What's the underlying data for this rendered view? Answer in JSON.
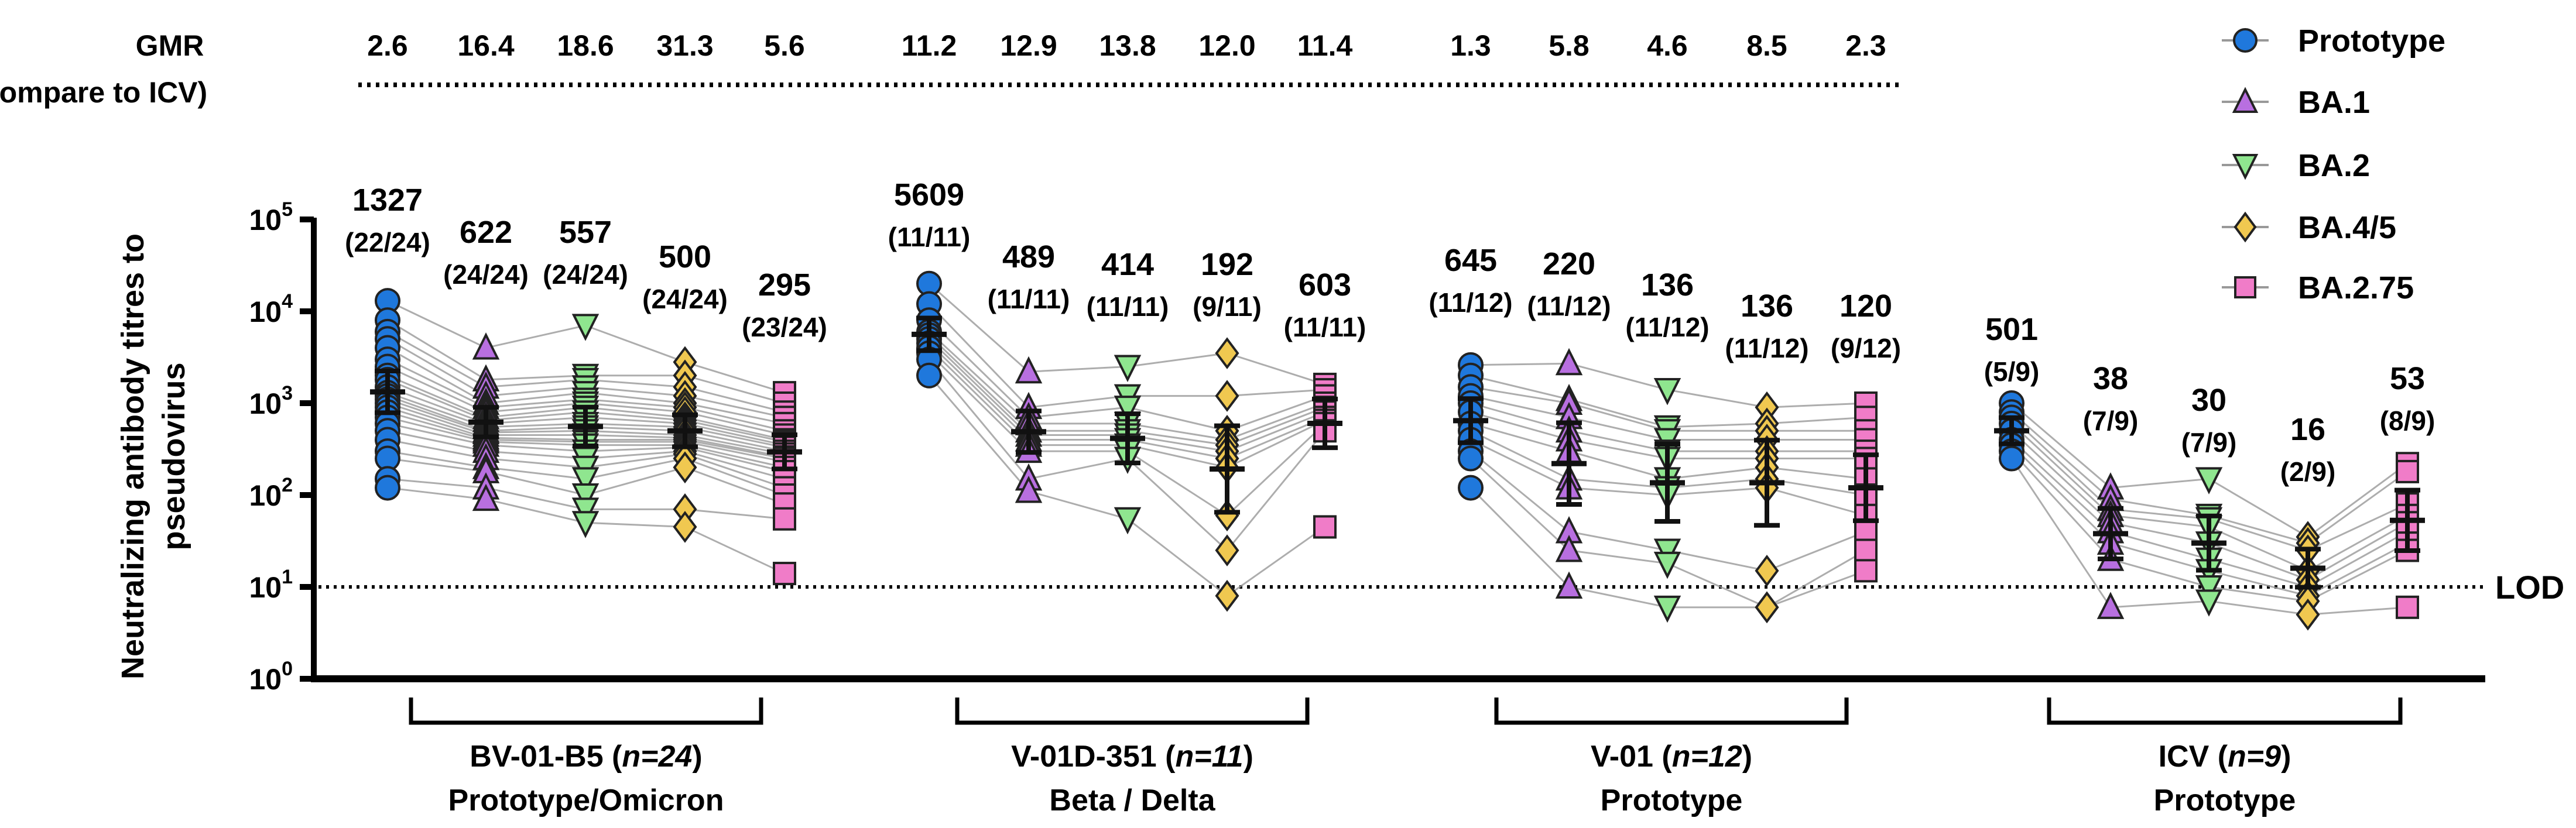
{
  "chart_data": {
    "type": "scatter",
    "title": "",
    "ylabel_lines": [
      "Neutralizing antibody titres to",
      "pseudovirus"
    ],
    "yscale": "log",
    "ylim": [
      1,
      100000
    ],
    "yticks": [
      {
        "base": "10",
        "exp": "0",
        "value": 1
      },
      {
        "base": "10",
        "exp": "1",
        "value": 10
      },
      {
        "base": "10",
        "exp": "2",
        "value": 100
      },
      {
        "base": "10",
        "exp": "3",
        "value": 1000
      },
      {
        "base": "10",
        "exp": "4",
        "value": 10000
      },
      {
        "base": "10",
        "exp": "5",
        "value": 100000
      }
    ],
    "lod": {
      "value": 10,
      "label": "LOD"
    },
    "gmr_header": {
      "label": "GMR",
      "sublabel": "(Compare to ICV)"
    },
    "legend_position": "top-right",
    "series": [
      {
        "name": "Prototype",
        "marker": "circle",
        "color": "#1f78dc"
      },
      {
        "name": "BA.1",
        "marker": "triangle-up",
        "color": "#b86fe0"
      },
      {
        "name": "BA.2",
        "marker": "triangle-down",
        "color": "#8fe68f"
      },
      {
        "name": "BA.4/5",
        "marker": "diamond",
        "color": "#f0c850"
      },
      {
        "name": "BA.2.75",
        "marker": "square",
        "color": "#f07cc8"
      }
    ],
    "groups": [
      {
        "label": "BV-01-B5 (",
        "n_label": "n=24",
        "label_end": ")",
        "sublabel": "Prototype/Omicron",
        "gmr": [
          "2.6",
          "16.4",
          "18.6",
          "31.3",
          "5.6"
        ],
        "gmt": [
          1327,
          622,
          557,
          500,
          295
        ],
        "gmt_labels": [
          "1327",
          "622",
          "557",
          "500",
          "295"
        ],
        "responders": [
          "(22/24)",
          "(24/24)",
          "(24/24)",
          "(24/24)",
          "(23/24)"
        ],
        "subjects": [
          [
            13000,
            4000,
            7000,
            2800,
            1300
          ],
          [
            8000,
            1800,
            2000,
            2000,
            1000
          ],
          [
            6000,
            1500,
            1800,
            1500,
            800
          ],
          [
            5000,
            1200,
            1500,
            1200,
            700
          ],
          [
            4000,
            1000,
            1300,
            1000,
            600
          ],
          [
            3000,
            900,
            1100,
            900,
            500
          ],
          [
            2500,
            800,
            1000,
            800,
            450
          ],
          [
            2000,
            700,
            900,
            700,
            400
          ],
          [
            1800,
            650,
            800,
            650,
            380
          ],
          [
            1500,
            600,
            700,
            600,
            350
          ],
          [
            1300,
            550,
            600,
            550,
            330
          ],
          [
            1200,
            500,
            550,
            500,
            300
          ],
          [
            1100,
            480,
            500,
            450,
            280
          ],
          [
            1000,
            450,
            450,
            420,
            260
          ],
          [
            900,
            420,
            400,
            400,
            250
          ],
          [
            800,
            400,
            380,
            380,
            230
          ],
          [
            700,
            380,
            350,
            350,
            200
          ],
          [
            600,
            350,
            300,
            330,
            180
          ],
          [
            500,
            300,
            250,
            300,
            150
          ],
          [
            400,
            250,
            200,
            280,
            120
          ],
          [
            300,
            200,
            150,
            250,
            100
          ],
          [
            250,
            180,
            100,
            200,
            80
          ],
          [
            150,
            120,
            70,
            70,
            55
          ],
          [
            120,
            90,
            50,
            45,
            14
          ]
        ]
      },
      {
        "label": "V-01D-351 (",
        "n_label": "n=11",
        "label_end": ")",
        "sublabel": "Beta / Delta",
        "gmr": [
          "11.2",
          "12.9",
          "13.8",
          "12.0",
          "11.4"
        ],
        "gmt": [
          5609,
          489,
          414,
          192,
          603
        ],
        "gmt_labels": [
          "5609",
          "489",
          "414",
          "192",
          "603"
        ],
        "responders": [
          "(11/11)",
          "(11/11)",
          "(11/11)",
          "(9/11)",
          "(11/11)"
        ],
        "subjects": [
          [
            20000,
            2200,
            2500,
            3500,
            1600
          ],
          [
            12000,
            900,
            1200,
            1200,
            1400
          ],
          [
            8000,
            700,
            900,
            500,
            1200
          ],
          [
            6000,
            600,
            600,
            400,
            1000
          ],
          [
            5500,
            500,
            500,
            350,
            900
          ],
          [
            5000,
            450,
            450,
            300,
            800
          ],
          [
            4500,
            400,
            400,
            250,
            700
          ],
          [
            4000,
            350,
            350,
            200,
            650
          ],
          [
            3500,
            300,
            300,
            60,
            600
          ],
          [
            3000,
            150,
            250,
            25,
            500
          ],
          [
            2000,
            110,
            55,
            8,
            45
          ]
        ]
      },
      {
        "label": "V-01 (",
        "n_label": "n=12",
        "label_end": ")",
        "sublabel": "Prototype",
        "gmr": [
          "1.3",
          "5.8",
          "4.6",
          "8.5",
          "2.3"
        ],
        "gmt": [
          645,
          220,
          136,
          136,
          120
        ],
        "gmt_labels": [
          "645",
          "220",
          "136",
          "136",
          "120"
        ],
        "responders": [
          "(11/12)",
          "(11/12)",
          "(11/12)",
          "(11/12)",
          "(9/12)"
        ],
        "subjects": [
          [
            2600,
            2700,
            1400,
            900,
            1000
          ],
          [
            2000,
            1100,
            550,
            600,
            700
          ],
          [
            1500,
            1000,
            500,
            500,
            500
          ],
          [
            1200,
            700,
            400,
            400,
            400
          ],
          [
            1000,
            500,
            300,
            300,
            300
          ],
          [
            800,
            400,
            250,
            250,
            250
          ],
          [
            600,
            300,
            150,
            200,
            150
          ],
          [
            500,
            150,
            120,
            150,
            100
          ],
          [
            400,
            120,
            100,
            120,
            60
          ],
          [
            300,
            40,
            25,
            15,
            40
          ],
          [
            250,
            25,
            18,
            6,
            25
          ],
          [
            120,
            10,
            6,
            6,
            15
          ]
        ]
      },
      {
        "label": "ICV (",
        "n_label": "n=9",
        "label_end": ")",
        "sublabel": "Prototype",
        "gmr": null,
        "gmt": [
          501,
          38,
          30,
          16,
          53
        ],
        "gmt_labels": [
          "501",
          "38",
          "30",
          "16",
          "53"
        ],
        "responders": [
          "(5/9)",
          "(7/9)",
          "(7/9)",
          "(2/9)",
          "(8/9)"
        ],
        "subjects": [
          [
            1000,
            120,
            150,
            35,
            220
          ],
          [
            800,
            90,
            60,
            30,
            180
          ],
          [
            700,
            70,
            55,
            25,
            80
          ],
          [
            600,
            60,
            45,
            15,
            60
          ],
          [
            500,
            50,
            30,
            12,
            50
          ],
          [
            400,
            40,
            20,
            10,
            40
          ],
          [
            350,
            30,
            15,
            8,
            30
          ],
          [
            300,
            20,
            10,
            7,
            25
          ],
          [
            250,
            6,
            7,
            5,
            6
          ]
        ]
      }
    ]
  }
}
